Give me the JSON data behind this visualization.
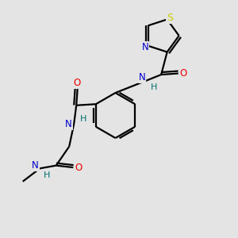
{
  "background_color": "#e4e4e4",
  "atom_colors": {
    "C": "#000000",
    "N": "#0000cc",
    "O": "#ee0000",
    "S": "#cccc00",
    "H": "#007070"
  },
  "bond_color": "#000000",
  "bond_width": 1.6,
  "font_size": 8.5
}
